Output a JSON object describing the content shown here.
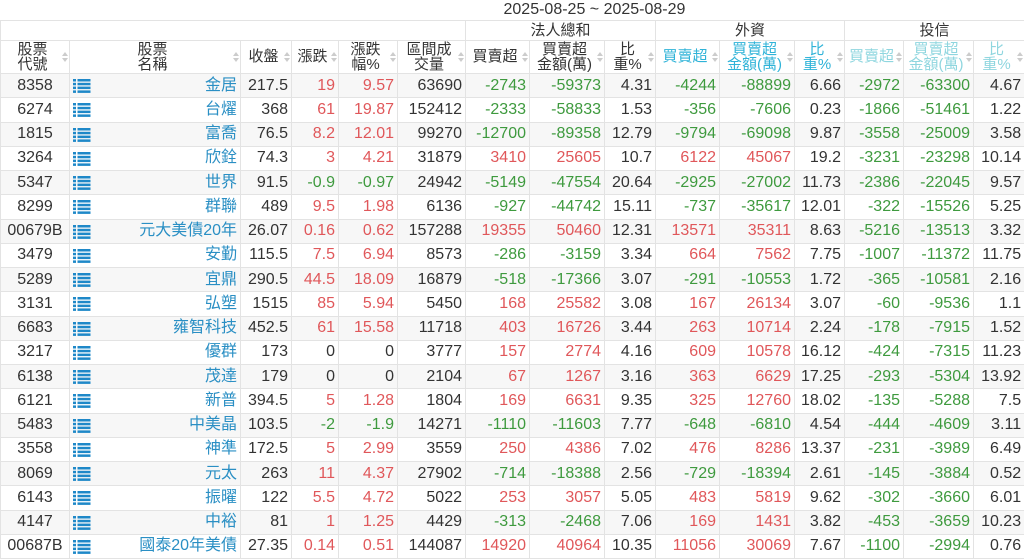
{
  "date_range": "2025-08-25 ~ 2025-08-29",
  "groups": {
    "total": "法人總和",
    "foreign": "外資",
    "trust": "投信"
  },
  "columns": {
    "code": "股票代號",
    "name": "股票名稱",
    "close": "收盤",
    "change": "漲跌",
    "change_pct": "漲跌幅%",
    "volume": "區間成交量",
    "total_net": "買賣超",
    "total_amount": "買賣超金額(萬)",
    "total_ratio": "比重%",
    "foreign_net": "買賣超",
    "foreign_amount": "買賣超金額(萬)",
    "foreign_ratio": "比重%",
    "trust_net": "買賣超",
    "trust_amount": "買賣超金額(萬)",
    "trust_ratio": "比重%"
  },
  "colors": {
    "up": "#e0575a",
    "down": "#3e9a3e",
    "name_link": "#2a8fc4",
    "foreign_header": "#2fb3d8",
    "trust_header": "#8fd6df"
  },
  "row_icon": "list-icon",
  "rows": [
    [
      "8358",
      "金居",
      "217.5",
      "19",
      "9.57",
      "63690",
      "-2743",
      "-59373",
      "4.31",
      "-4244",
      "-88899",
      "6.66",
      "-2972",
      "-63300",
      "4.67"
    ],
    [
      "6274",
      "台燿",
      "368",
      "61",
      "19.87",
      "152412",
      "-2333",
      "-58833",
      "1.53",
      "-356",
      "-7606",
      "0.23",
      "-1866",
      "-51461",
      "1.22"
    ],
    [
      "1815",
      "富喬",
      "76.5",
      "8.2",
      "12.01",
      "99270",
      "-12700",
      "-89358",
      "12.79",
      "-9794",
      "-69098",
      "9.87",
      "-3558",
      "-25009",
      "3.58"
    ],
    [
      "3264",
      "欣銓",
      "74.3",
      "3",
      "4.21",
      "31879",
      "3410",
      "25605",
      "10.7",
      "6122",
      "45067",
      "19.2",
      "-3231",
      "-23298",
      "10.14"
    ],
    [
      "5347",
      "世界",
      "91.5",
      "-0.9",
      "-0.97",
      "24942",
      "-5149",
      "-47554",
      "20.64",
      "-2925",
      "-27002",
      "11.73",
      "-2386",
      "-22045",
      "9.57"
    ],
    [
      "8299",
      "群聯",
      "489",
      "9.5",
      "1.98",
      "6136",
      "-927",
      "-44742",
      "15.11",
      "-737",
      "-35617",
      "12.01",
      "-322",
      "-15526",
      "5.25"
    ],
    [
      "00679B",
      "元大美債20年",
      "26.07",
      "0.16",
      "0.62",
      "157288",
      "19355",
      "50460",
      "12.31",
      "13571",
      "35311",
      "8.63",
      "-5216",
      "-13513",
      "3.32"
    ],
    [
      "3479",
      "安勤",
      "115.5",
      "7.5",
      "6.94",
      "8573",
      "-286",
      "-3159",
      "3.34",
      "664",
      "7562",
      "7.75",
      "-1007",
      "-11372",
      "11.75"
    ],
    [
      "5289",
      "宜鼎",
      "290.5",
      "44.5",
      "18.09",
      "16879",
      "-518",
      "-17366",
      "3.07",
      "-291",
      "-10553",
      "1.72",
      "-365",
      "-10581",
      "2.16"
    ],
    [
      "3131",
      "弘塑",
      "1515",
      "85",
      "5.94",
      "5450",
      "168",
      "25582",
      "3.08",
      "167",
      "26134",
      "3.07",
      "-60",
      "-9536",
      "1.1"
    ],
    [
      "6683",
      "雍智科技",
      "452.5",
      "61",
      "15.58",
      "11718",
      "403",
      "16726",
      "3.44",
      "263",
      "10714",
      "2.24",
      "-178",
      "-7915",
      "1.52"
    ],
    [
      "3217",
      "優群",
      "173",
      "0",
      "0",
      "3777",
      "157",
      "2774",
      "4.16",
      "609",
      "10578",
      "16.12",
      "-424",
      "-7315",
      "11.23"
    ],
    [
      "6138",
      "茂達",
      "179",
      "0",
      "0",
      "2104",
      "67",
      "1267",
      "3.16",
      "363",
      "6629",
      "17.25",
      "-293",
      "-5304",
      "13.92"
    ],
    [
      "6121",
      "新普",
      "394.5",
      "5",
      "1.28",
      "1804",
      "169",
      "6631",
      "9.35",
      "325",
      "12760",
      "18.02",
      "-135",
      "-5288",
      "7.5"
    ],
    [
      "5483",
      "中美晶",
      "103.5",
      "-2",
      "-1.9",
      "14271",
      "-1110",
      "-11603",
      "7.77",
      "-648",
      "-6810",
      "4.54",
      "-444",
      "-4609",
      "3.11"
    ],
    [
      "3558",
      "神準",
      "172.5",
      "5",
      "2.99",
      "3559",
      "250",
      "4386",
      "7.02",
      "476",
      "8286",
      "13.37",
      "-231",
      "-3989",
      "6.49"
    ],
    [
      "8069",
      "元太",
      "263",
      "11",
      "4.37",
      "27902",
      "-714",
      "-18388",
      "2.56",
      "-729",
      "-18394",
      "2.61",
      "-145",
      "-3884",
      "0.52"
    ],
    [
      "6143",
      "振曜",
      "122",
      "5.5",
      "4.72",
      "5022",
      "253",
      "3057",
      "5.05",
      "483",
      "5819",
      "9.62",
      "-302",
      "-3660",
      "6.01"
    ],
    [
      "4147",
      "中裕",
      "81",
      "1",
      "1.25",
      "4429",
      "-313",
      "-2468",
      "7.06",
      "169",
      "1431",
      "3.82",
      "-453",
      "-3659",
      "10.23"
    ],
    [
      "00687B",
      "國泰20年美債",
      "27.35",
      "0.14",
      "0.51",
      "144087",
      "14920",
      "40964",
      "10.35",
      "11056",
      "30069",
      "7.67",
      "-1100",
      "-2994",
      "0.76"
    ]
  ]
}
